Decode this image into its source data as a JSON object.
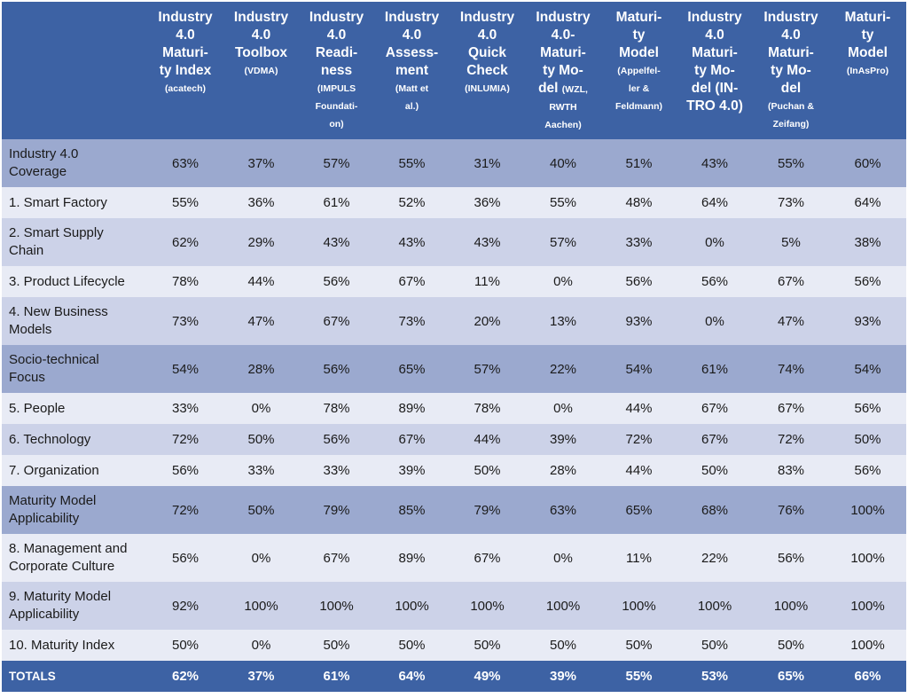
{
  "chart_data": {
    "type": "table",
    "columns": [
      {
        "main": [
          "Industry",
          "4.0",
          "Maturi-",
          "ty Index"
        ],
        "sub": [
          "(acatech)"
        ]
      },
      {
        "main": [
          "Industry",
          "4.0",
          "Toolbox"
        ],
        "sub": [
          "(VDMA)"
        ]
      },
      {
        "main": [
          "Industry",
          "4.0",
          "Readi-",
          "ness"
        ],
        "sub": [
          "(IMPULS",
          "Foundati-",
          "on)"
        ]
      },
      {
        "main": [
          "Industry",
          "4.0",
          "Assess-",
          "ment"
        ],
        "sub": [
          "(Matt et",
          "al.)"
        ]
      },
      {
        "main": [
          "Industry",
          "4.0",
          "Quick",
          "Check"
        ],
        "sub": [
          "(INLUMIA)"
        ]
      },
      {
        "main": [
          "Industry",
          "4.0-",
          "Maturi-",
          "ty Mo-",
          "del"
        ],
        "inline_sub": "(WZL,",
        "sub": [
          "RWTH",
          "Aachen)"
        ]
      },
      {
        "main": [
          "Maturi-",
          "ty",
          "Model"
        ],
        "sub": [
          "(Appelfel-",
          "ler &",
          "Feldmann)"
        ]
      },
      {
        "main": [
          "Industry",
          "4.0",
          "Maturi-",
          "ty Mo-",
          "del (IN-",
          "TRO 4.0)"
        ],
        "sub": []
      },
      {
        "main": [
          "Industry",
          "4.0",
          "Maturi-",
          "ty Mo-",
          "del"
        ],
        "sub": [
          "(Puchan &",
          "Zeifang)"
        ]
      },
      {
        "main": [
          "Maturi-",
          "ty",
          "Model"
        ],
        "sub": [
          "(InAsPro)"
        ]
      }
    ],
    "rows": [
      {
        "label": [
          "Industry 4.0",
          "Coverage"
        ],
        "kind": "group",
        "values": [
          "63%",
          "37%",
          "57%",
          "55%",
          "31%",
          "40%",
          "51%",
          "43%",
          "55%",
          "60%"
        ]
      },
      {
        "label": [
          "1. Smart Factory"
        ],
        "kind": "alt2",
        "values": [
          "55%",
          "36%",
          "61%",
          "52%",
          "36%",
          "55%",
          "48%",
          "64%",
          "73%",
          "64%"
        ]
      },
      {
        "label": [
          "2. Smart Supply",
          "Chain"
        ],
        "kind": "alt1",
        "values": [
          "62%",
          "29%",
          "43%",
          "43%",
          "43%",
          "57%",
          "33%",
          "0%",
          "5%",
          "38%"
        ]
      },
      {
        "label": [
          "3. Product Lifecycle"
        ],
        "kind": "alt2",
        "values": [
          "78%",
          "44%",
          "56%",
          "67%",
          "11%",
          "0%",
          "56%",
          "56%",
          "67%",
          "56%"
        ]
      },
      {
        "label": [
          "4. New Business",
          "Models"
        ],
        "kind": "alt1",
        "values": [
          "73%",
          "47%",
          "67%",
          "73%",
          "20%",
          "13%",
          "93%",
          "0%",
          "47%",
          "93%"
        ]
      },
      {
        "label": [
          "Socio-technical",
          "Focus"
        ],
        "kind": "group",
        "values": [
          "54%",
          "28%",
          "56%",
          "65%",
          "57%",
          "22%",
          "54%",
          "61%",
          "74%",
          "54%"
        ]
      },
      {
        "label": [
          "5. People"
        ],
        "kind": "alt2",
        "values": [
          "33%",
          "0%",
          "78%",
          "89%",
          "78%",
          "0%",
          "44%",
          "67%",
          "67%",
          "56%"
        ]
      },
      {
        "label": [
          "6. Technology"
        ],
        "kind": "alt1",
        "values": [
          "72%",
          "50%",
          "56%",
          "67%",
          "44%",
          "39%",
          "72%",
          "67%",
          "72%",
          "50%"
        ]
      },
      {
        "label": [
          "7. Organization"
        ],
        "kind": "alt2",
        "values": [
          "56%",
          "33%",
          "33%",
          "39%",
          "50%",
          "28%",
          "44%",
          "50%",
          "83%",
          "56%"
        ]
      },
      {
        "label": [
          "Maturity Model",
          "Applicability"
        ],
        "kind": "group",
        "values": [
          "72%",
          "50%",
          "79%",
          "85%",
          "79%",
          "63%",
          "65%",
          "68%",
          "76%",
          "100%"
        ]
      },
      {
        "label": [
          "8. Management and",
          "Corporate Culture"
        ],
        "kind": "alt2",
        "values": [
          "56%",
          "0%",
          "67%",
          "89%",
          "67%",
          "0%",
          "11%",
          "22%",
          "56%",
          "100%"
        ]
      },
      {
        "label": [
          "9. Maturity Model",
          "Applicability"
        ],
        "kind": "alt1",
        "values": [
          "92%",
          "100%",
          "100%",
          "100%",
          "100%",
          "100%",
          "100%",
          "100%",
          "100%",
          "100%"
        ]
      },
      {
        "label": [
          "10. Maturity Index"
        ],
        "kind": "alt2",
        "values": [
          "50%",
          "0%",
          "50%",
          "50%",
          "50%",
          "50%",
          "50%",
          "50%",
          "50%",
          "100%"
        ]
      },
      {
        "label": [
          "TOTALS"
        ],
        "kind": "total",
        "values": [
          "62%",
          "37%",
          "61%",
          "64%",
          "49%",
          "39%",
          "55%",
          "53%",
          "65%",
          "66%"
        ]
      }
    ]
  }
}
